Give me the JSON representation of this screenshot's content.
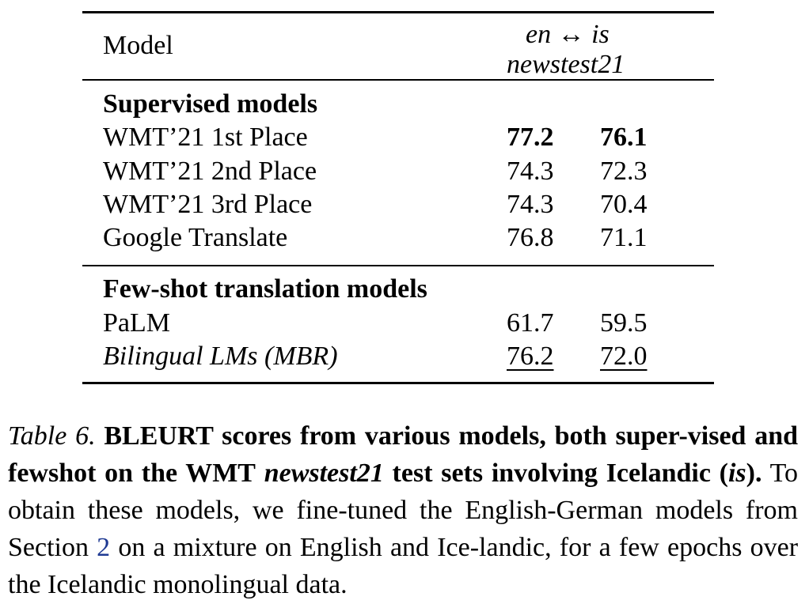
{
  "table": {
    "header": {
      "model": "Model",
      "lang_pair_left": "en",
      "lang_arrow": "↔",
      "lang_pair_right": "is",
      "testset": "newstest21"
    },
    "groups": [
      {
        "name": "Supervised models",
        "rows": [
          {
            "model": "WMT’21 1st Place",
            "v1": "77.2",
            "v2": "76.1"
          },
          {
            "model": "WMT’21 2nd Place",
            "v1": "74.3",
            "v2": "72.3"
          },
          {
            "model": "WMT’21 3rd Place",
            "v1": "74.3",
            "v2": "70.4"
          },
          {
            "model": "Google Translate",
            "v1": "76.8",
            "v2": "71.1"
          }
        ]
      },
      {
        "name": "Few-shot translation models",
        "rows": [
          {
            "model": "PaLM",
            "v1": "61.7",
            "v2": "59.5"
          },
          {
            "model": "Bilingual LMs (MBR)",
            "v1": "76.2",
            "v2": "72.0"
          }
        ]
      }
    ]
  },
  "caption": {
    "label": "Table 6.",
    "bold_1": "BLEURT scores from various models, both super-vised and fewshot on the WMT",
    "bold_italic_1": "newstest21",
    "bold_2": "test sets involving Icelandic (",
    "bold_italic_2": "is",
    "bold_3": ").",
    "text_1": "To obtain these models, we fine-tuned the English-German models from Section",
    "ref": "2",
    "text_2": "on a mixture on English and Ice-landic, for a few epochs over the Icelandic monolingual data."
  }
}
